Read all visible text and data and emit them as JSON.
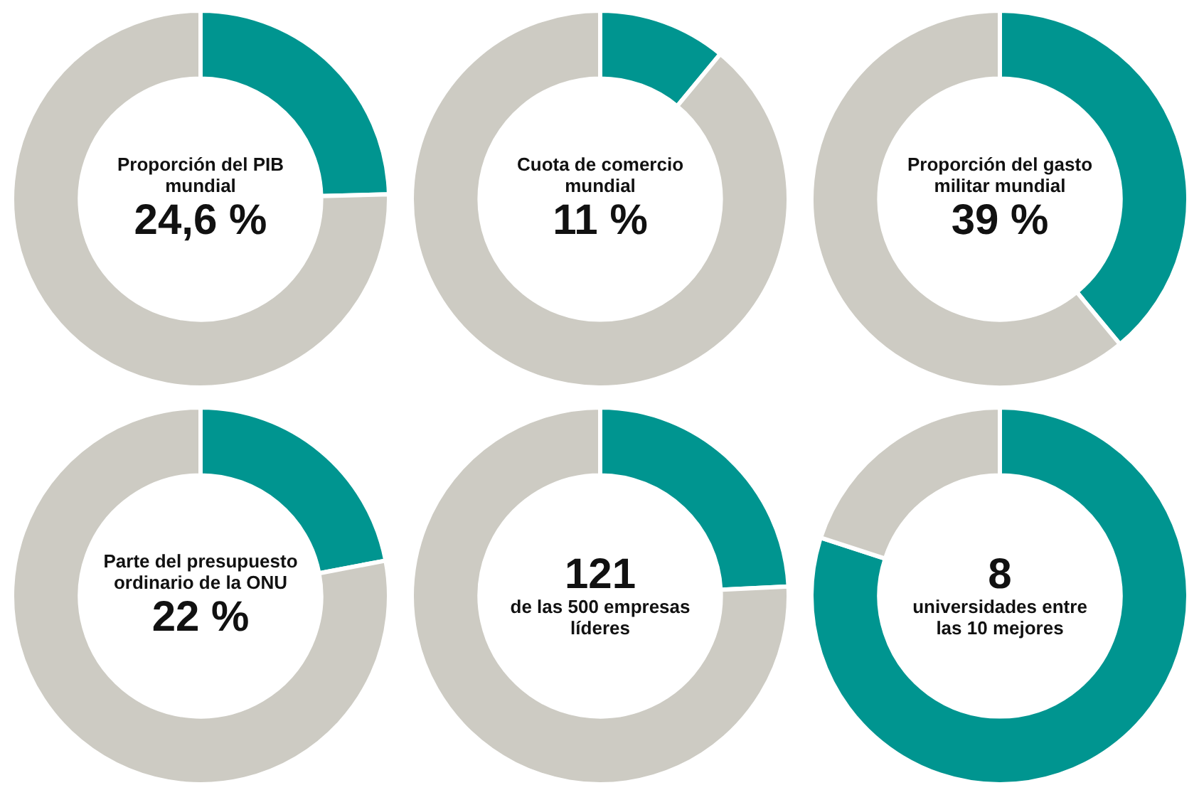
{
  "chart_data": [
    {
      "type": "donut",
      "title": "Proporción del PIB mundial",
      "categories": [
        null,
        null
      ],
      "values": [
        24.6,
        75.4
      ],
      "colors": [
        "#009590",
        "#cdcbc3"
      ],
      "annotations": [
        "24,6 %"
      ],
      "legend": false
    },
    {
      "type": "donut",
      "title": "Cuota de comercio mundial",
      "categories": [
        null,
        null
      ],
      "values": [
        11,
        89
      ],
      "colors": [
        "#009590",
        "#cdcbc3"
      ],
      "annotations": [
        "11 %"
      ],
      "legend": false
    },
    {
      "type": "donut",
      "title": "Proporción del gasto militar mundial",
      "categories": [
        null,
        null
      ],
      "values": [
        39,
        61
      ],
      "colors": [
        "#009590",
        "#cdcbc3"
      ],
      "annotations": [
        "39 %"
      ],
      "legend": false
    },
    {
      "type": "donut",
      "title": "Parte del presupuesto ordinario de la ONU",
      "categories": [
        null,
        null
      ],
      "values": [
        22,
        78
      ],
      "colors": [
        "#009590",
        "#cdcbc3"
      ],
      "annotations": [
        "22 %"
      ],
      "legend": false
    },
    {
      "type": "donut",
      "subtitle": "de las 500 empresas líderes",
      "categories": [
        null,
        null
      ],
      "values": [
        24.2,
        75.8
      ],
      "colors": [
        "#009590",
        "#cdcbc3"
      ],
      "annotations": [
        "121"
      ],
      "legend": false
    },
    {
      "type": "donut",
      "subtitle": "universidades entre las 10 mejores",
      "categories": [
        null,
        null
      ],
      "values": [
        80,
        20
      ],
      "colors": [
        "#009590",
        "#cdcbc3"
      ],
      "annotations": [
        "8"
      ],
      "legend": false
    }
  ]
}
